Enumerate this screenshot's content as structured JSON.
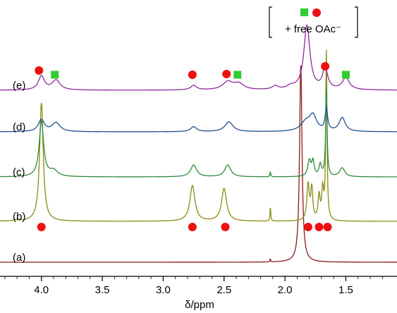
{
  "chart_data": {
    "type": "line",
    "title": "",
    "xlabel": "δ/ppm",
    "ylabel": "",
    "xlim": [
      4.34,
      1.08
    ],
    "x_reversed": true,
    "x_ticks": [
      {
        "value": 4.0,
        "label": "4.0"
      },
      {
        "value": 3.5,
        "label": "3.5"
      },
      {
        "value": 3.0,
        "label": "3.0"
      },
      {
        "value": 2.5,
        "label": "2.5"
      },
      {
        "value": 2.0,
        "label": "2.0"
      },
      {
        "value": 1.5,
        "label": "1.5"
      }
    ],
    "grid": false,
    "legend": "none",
    "bracket_annotation": {
      "text": "+ free OAc⁻",
      "near_x": 1.85
    },
    "marker_legend": {
      "circle": {
        "shape": "circle",
        "color": "#ee1111"
      },
      "square": {
        "shape": "square",
        "color": "#33cc33"
      }
    },
    "series": [
      {
        "label": "(a)",
        "color": "#8b1a1a",
        "baseline": 0.0,
        "peaks": [
          {
            "x": 2.12,
            "h": 0.3,
            "w": 0.003
          },
          {
            "x": 1.87,
            "h": 20.0,
            "w": 0.012
          }
        ],
        "markers": []
      },
      {
        "label": "(b)",
        "color": "#8a8a12",
        "baseline": 0.0,
        "peaks": [
          {
            "x": 4.21,
            "h": 0.1,
            "w": 0.02
          },
          {
            "x": 4.0,
            "h": 12.0,
            "w": 0.018
          },
          {
            "x": 2.76,
            "h": 3.6,
            "w": 0.025
          },
          {
            "x": 2.5,
            "h": 3.3,
            "w": 0.025
          },
          {
            "x": 2.12,
            "h": 1.4,
            "w": 0.004
          },
          {
            "x": 1.81,
            "h": 3.6,
            "w": 0.012
          },
          {
            "x": 1.78,
            "h": 3.2,
            "w": 0.01
          },
          {
            "x": 1.72,
            "h": 2.4,
            "w": 0.01
          },
          {
            "x": 1.69,
            "h": 3.0,
            "w": 0.01
          },
          {
            "x": 1.66,
            "h": 17.0,
            "w": 0.006
          }
        ],
        "markers": [
          {
            "x": 4.0,
            "shape": "circle"
          },
          {
            "x": 2.76,
            "shape": "circle"
          },
          {
            "x": 2.49,
            "shape": "circle"
          },
          {
            "x": 1.81,
            "shape": "circle"
          },
          {
            "x": 1.72,
            "shape": "circle"
          },
          {
            "x": 1.65,
            "shape": "circle"
          }
        ]
      },
      {
        "label": "(c)",
        "color": "#2f8a3a",
        "baseline": 0.0,
        "peaks": [
          {
            "x": 4.0,
            "h": 5.6,
            "w": 0.022
          },
          {
            "x": 3.9,
            "h": 0.6,
            "w": 0.04
          },
          {
            "x": 2.75,
            "h": 1.2,
            "w": 0.03
          },
          {
            "x": 2.47,
            "h": 1.2,
            "w": 0.03
          },
          {
            "x": 2.12,
            "h": 0.5,
            "w": 0.004
          },
          {
            "x": 1.8,
            "h": 1.6,
            "w": 0.015
          },
          {
            "x": 1.77,
            "h": 1.5,
            "w": 0.012
          },
          {
            "x": 1.71,
            "h": 1.2,
            "w": 0.012
          },
          {
            "x": 1.66,
            "h": 9.0,
            "w": 0.007
          },
          {
            "x": 1.53,
            "h": 0.9,
            "w": 0.025
          }
        ],
        "markers": []
      },
      {
        "label": "(d)",
        "color": "#1f4e8c",
        "baseline": 0.0,
        "peaks": [
          {
            "x": 4.0,
            "h": 1.2,
            "w": 0.03
          },
          {
            "x": 3.88,
            "h": 0.9,
            "w": 0.04
          },
          {
            "x": 2.75,
            "h": 0.5,
            "w": 0.03
          },
          {
            "x": 2.46,
            "h": 1.0,
            "w": 0.04
          },
          {
            "x": 1.83,
            "h": 0.9,
            "w": 0.05
          },
          {
            "x": 1.77,
            "h": 1.5,
            "w": 0.035
          },
          {
            "x": 1.66,
            "h": 2.3,
            "w": 0.012
          },
          {
            "x": 1.53,
            "h": 1.4,
            "w": 0.03
          }
        ],
        "markers": []
      },
      {
        "label": "(e)",
        "color": "#8b2a9a",
        "baseline": 0.0,
        "peaks": [
          {
            "x": 4.0,
            "h": 1.4,
            "w": 0.03
          },
          {
            "x": 3.88,
            "h": 1.0,
            "w": 0.04
          },
          {
            "x": 2.75,
            "h": 0.45,
            "w": 0.03
          },
          {
            "x": 2.47,
            "h": 0.8,
            "w": 0.05
          },
          {
            "x": 2.38,
            "h": 0.6,
            "w": 0.05
          },
          {
            "x": 2.08,
            "h": 0.35,
            "w": 0.03
          },
          {
            "x": 1.95,
            "h": 0.3,
            "w": 0.04
          },
          {
            "x": 1.82,
            "h": 6.5,
            "w": 0.03
          },
          {
            "x": 1.67,
            "h": 2.1,
            "w": 0.025
          },
          {
            "x": 1.5,
            "h": 1.2,
            "w": 0.035
          }
        ],
        "markers": [
          {
            "x": 4.02,
            "shape": "circle"
          },
          {
            "x": 3.89,
            "shape": "square"
          },
          {
            "x": 2.76,
            "shape": "circle"
          },
          {
            "x": 2.48,
            "shape": "circle"
          },
          {
            "x": 2.39,
            "shape": "square"
          },
          {
            "x": 1.67,
            "shape": "circle"
          },
          {
            "x": 1.5,
            "shape": "square"
          }
        ]
      }
    ]
  }
}
